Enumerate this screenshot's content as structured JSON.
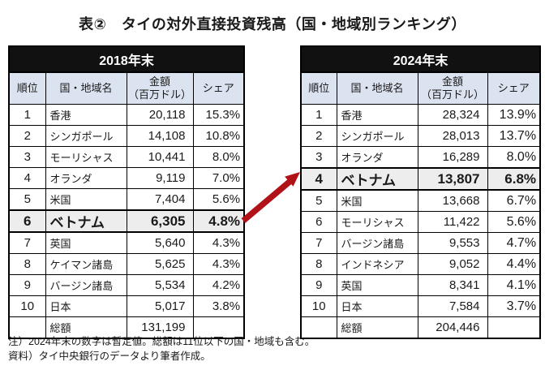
{
  "title": "表②　タイの対外直接投資残高（国・地域別ランキング）",
  "tables": [
    {
      "year_header": "2018年末",
      "columns": {
        "rank": "順位",
        "country": "国・地域名",
        "amount_line1": "金額",
        "amount_line2": "（百万ドル）",
        "share": "シェア"
      },
      "rows": [
        {
          "rank": "1",
          "country": "香港",
          "amount": "20,118",
          "share": "15.3%",
          "highlight": false
        },
        {
          "rank": "2",
          "country": "シンガポール",
          "amount": "14,108",
          "share": "10.8%",
          "highlight": false
        },
        {
          "rank": "3",
          "country": "モーリシャス",
          "amount": "10,441",
          "share": "8.0%",
          "highlight": false
        },
        {
          "rank": "4",
          "country": "オランダ",
          "amount": "9,119",
          "share": "7.0%",
          "highlight": false
        },
        {
          "rank": "5",
          "country": "米国",
          "amount": "7,404",
          "share": "5.6%",
          "highlight": false
        },
        {
          "rank": "6",
          "country": "ベトナム",
          "amount": "6,305",
          "share": "4.8%",
          "highlight": true
        },
        {
          "rank": "7",
          "country": "英国",
          "amount": "5,640",
          "share": "4.3%",
          "highlight": false
        },
        {
          "rank": "8",
          "country": "ケイマン諸島",
          "amount": "5,625",
          "share": "4.3%",
          "highlight": false
        },
        {
          "rank": "9",
          "country": "バージン諸島",
          "amount": "5,534",
          "share": "4.2%",
          "highlight": false
        },
        {
          "rank": "10",
          "country": "日本",
          "amount": "5,017",
          "share": "3.8%",
          "highlight": false
        }
      ],
      "total_label": "総額",
      "total_amount": "131,199"
    },
    {
      "year_header": "2024年末",
      "columns": {
        "rank": "順位",
        "country": "国・地域名",
        "amount_line1": "金額",
        "amount_line2": "（百万ドル）",
        "share": "シェア"
      },
      "rows": [
        {
          "rank": "1",
          "country": "香港",
          "amount": "28,324",
          "share": "13.9%",
          "highlight": false
        },
        {
          "rank": "2",
          "country": "シンガポール",
          "amount": "28,013",
          "share": "13.7%",
          "highlight": false
        },
        {
          "rank": "3",
          "country": "オランダ",
          "amount": "16,289",
          "share": "8.0%",
          "highlight": false
        },
        {
          "rank": "4",
          "country": "ベトナム",
          "amount": "13,807",
          "share": "6.8%",
          "highlight": true
        },
        {
          "rank": "5",
          "country": "米国",
          "amount": "13,668",
          "share": "6.7%",
          "highlight": false
        },
        {
          "rank": "6",
          "country": "モーリシャス",
          "amount": "11,422",
          "share": "5.6%",
          "highlight": false
        },
        {
          "rank": "7",
          "country": "バージン諸島",
          "amount": "9,553",
          "share": "4.7%",
          "highlight": false
        },
        {
          "rank": "8",
          "country": "インドネシア",
          "amount": "9,052",
          "share": "4.4%",
          "highlight": false
        },
        {
          "rank": "9",
          "country": "英国",
          "amount": "8,341",
          "share": "4.1%",
          "highlight": false
        },
        {
          "rank": "10",
          "country": "日本",
          "amount": "7,584",
          "share": "3.7%",
          "highlight": false
        }
      ],
      "total_label": "総額",
      "total_amount": "204,446"
    }
  ],
  "footnotes": [
    "注）2024年末の数字は暫定値。総額は11位以下の国・地域も含む。",
    "資料）タイ中央銀行のデータより筆者作成。"
  ],
  "arrow": {
    "color": "#b01218"
  },
  "colors": {
    "year_header_bg": "#111111",
    "year_header_text": "#ffffff",
    "column_header_bg": "#dce3f0",
    "highlight_row_bg": "#ededed",
    "border": "#000000",
    "arrow": "#b01218"
  },
  "chart_data": [
    {
      "type": "table",
      "title": "2018年末",
      "columns": [
        "順位",
        "国・地域名",
        "金額（百万ドル）",
        "シェア"
      ],
      "rows": [
        [
          1,
          "香港",
          20118,
          15.3
        ],
        [
          2,
          "シンガポール",
          14108,
          10.8
        ],
        [
          3,
          "モーリシャス",
          10441,
          8.0
        ],
        [
          4,
          "オランダ",
          9119,
          7.0
        ],
        [
          5,
          "米国",
          7404,
          5.6
        ],
        [
          6,
          "ベトナム",
          6305,
          4.8
        ],
        [
          7,
          "英国",
          5640,
          4.3
        ],
        [
          8,
          "ケイマン諸島",
          5625,
          4.3
        ],
        [
          9,
          "バージン諸島",
          5534,
          4.2
        ],
        [
          10,
          "日本",
          5017,
          3.8
        ]
      ],
      "total": 131199,
      "share_unit": "%",
      "highlighted_rank": 6
    },
    {
      "type": "table",
      "title": "2024年末",
      "columns": [
        "順位",
        "国・地域名",
        "金額（百万ドル）",
        "シェア"
      ],
      "rows": [
        [
          1,
          "香港",
          28324,
          13.9
        ],
        [
          2,
          "シンガポール",
          28013,
          13.7
        ],
        [
          3,
          "オランダ",
          16289,
          8.0
        ],
        [
          4,
          "ベトナム",
          13807,
          6.8
        ],
        [
          5,
          "米国",
          13668,
          6.7
        ],
        [
          6,
          "モーリシャス",
          11422,
          5.6
        ],
        [
          7,
          "バージン諸島",
          9553,
          4.7
        ],
        [
          8,
          "インドネシア",
          9052,
          4.4
        ],
        [
          9,
          "英国",
          8341,
          4.1
        ],
        [
          10,
          "日本",
          7584,
          3.7
        ]
      ],
      "total": 204446,
      "share_unit": "%",
      "highlighted_rank": 4
    }
  ]
}
